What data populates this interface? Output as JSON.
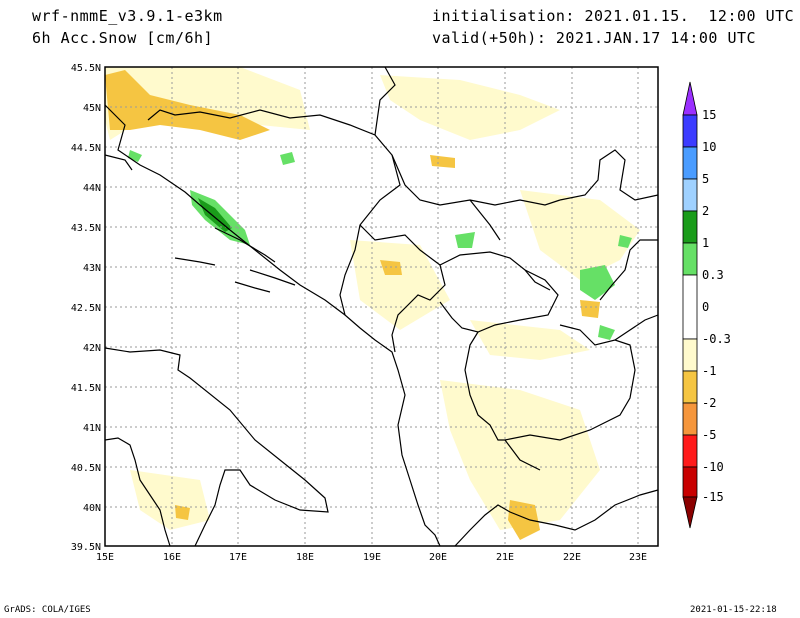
{
  "header": {
    "model": "wrf-nmmE_v3.9.1-e3km",
    "field": "6h Acc.Snow [cm/6h]",
    "init": "initialisation: 2021.01.15.  12:00 UTC",
    "valid": "valid(+50h): 2021.JAN.17 14:00 UTC"
  },
  "footer": {
    "left": "GrADS: COLA/IGES",
    "right": "2021-01-15-22:18"
  },
  "map": {
    "lat_labels": [
      "45.5N",
      "45N",
      "44.5N",
      "44N",
      "43.5N",
      "43N",
      "42.5N",
      "42N",
      "41.5N",
      "41N",
      "40.5N",
      "40N",
      "39.5N"
    ],
    "lon_labels": [
      "15E",
      "16E",
      "17E",
      "18E",
      "19E",
      "20E",
      "21E",
      "22E",
      "23E"
    ]
  },
  "colorbar": {
    "labels": [
      "15",
      "10",
      "5",
      "2",
      "1",
      "0.3",
      "0",
      "-0.3",
      "-1",
      "-2",
      "-5",
      "-10",
      "-15"
    ],
    "colors": [
      "#9b30ff",
      "#3c3cff",
      "#4a9cff",
      "#9fd1ff",
      "#1a9c1a",
      "#66e066",
      "#ffffff",
      "#fffacd",
      "#f5c542",
      "#f5963c",
      "#ff1a1a",
      "#c80000",
      "#8b0000"
    ]
  }
}
